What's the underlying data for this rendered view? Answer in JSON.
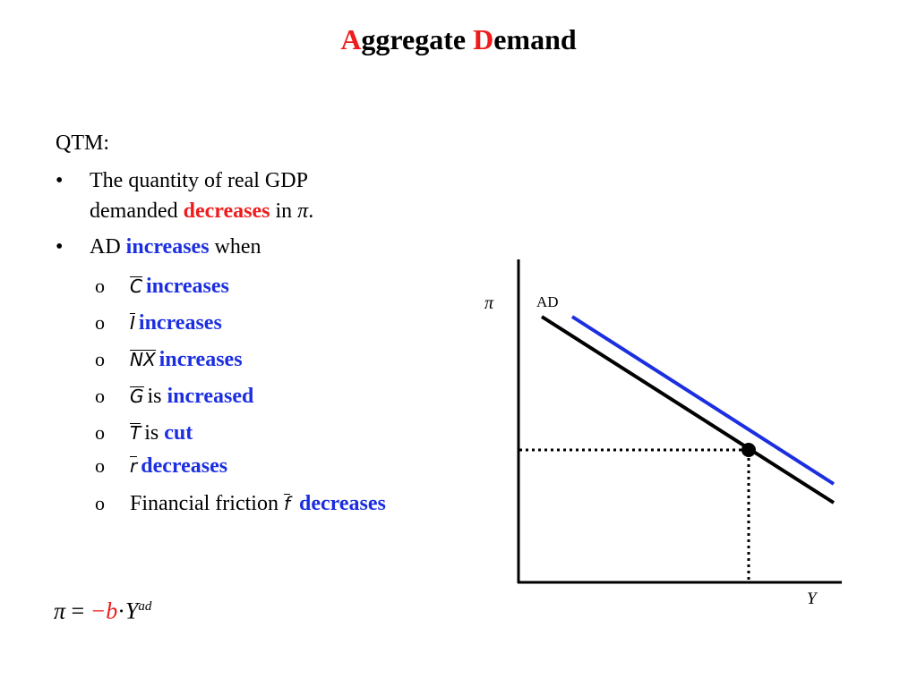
{
  "slide": {
    "title_first": "A",
    "title_rest1": "ggregate ",
    "title_second": "D",
    "title_rest2": "emand"
  },
  "left": {
    "heading": "QTM:",
    "bullet1": {
      "line1": "The quantity of real GDP",
      "line2_pre": "demanded ",
      "line2_kw": "decreases",
      "line2_post": " in ",
      "symbol": "π",
      "end": "."
    },
    "bullet2": {
      "pre": "AD ",
      "kw": "increases",
      "post": " when"
    },
    "items": [
      {
        "sym": "C",
        "mid": "",
        "kw": "increases"
      },
      {
        "sym": "I",
        "mid": "",
        "kw": "increases"
      },
      {
        "sym": "NX",
        "mid": "",
        "kw": "increases"
      },
      {
        "sym": "G",
        "mid": "is ",
        "kw": "increased"
      },
      {
        "sym": "T",
        "mid": "is ",
        "kw": "cut"
      },
      {
        "sym": "r",
        "mid": "",
        "kw": "decreases"
      },
      {
        "sym": "f",
        "pre": "Financial friction ",
        "kw": "decreases"
      }
    ],
    "formula": {
      "lhs": "π",
      "eq": " = ",
      "coef": "−b",
      "dot": "·",
      "var": "Y",
      "sup": "ad"
    }
  },
  "diagram": {
    "y_axis_label": "π",
    "x_axis_label": "Y",
    "curve_label": "AD",
    "colors": {
      "original_curve": "#000000",
      "shifted_curve": "#1c2fe0",
      "guides": "#000000"
    }
  }
}
